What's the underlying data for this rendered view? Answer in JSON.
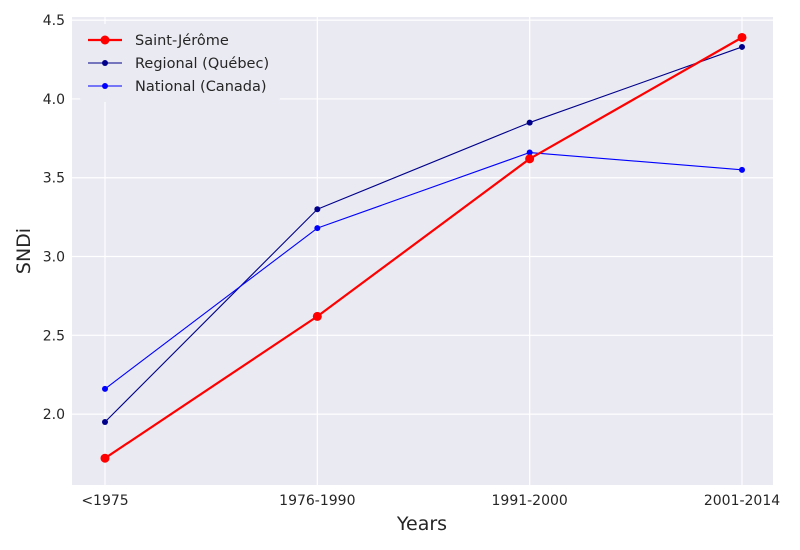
{
  "chart_data": {
    "type": "line",
    "categories": [
      "<1975",
      "1976-1990",
      "1991-2000",
      "2001-2014"
    ],
    "xlabel": "Years",
    "ylabel": "SNDi",
    "ylim": [
      1.55,
      4.52
    ],
    "yticks": [
      2.0,
      2.5,
      3.0,
      3.5,
      4.0,
      4.5
    ],
    "ytick_labels": [
      "2.0",
      "2.5",
      "3.0",
      "3.5",
      "4.0",
      "4.5"
    ],
    "grid": true,
    "legend_position": "top-left",
    "series": [
      {
        "name": "Saint-Jérôme",
        "values": [
          1.72,
          2.62,
          3.62,
          4.39
        ],
        "color": "#ff0000",
        "emphasis": true
      },
      {
        "name": "Regional (Québec)",
        "values": [
          1.95,
          3.3,
          3.85,
          4.33
        ],
        "color": "#00008b",
        "emphasis": false
      },
      {
        "name": "National (Canada)",
        "values": [
          2.16,
          3.18,
          3.66,
          3.55
        ],
        "color": "#0000ff",
        "emphasis": false
      }
    ]
  },
  "colors": {
    "plot_background": "#eaeaf2",
    "grid": "#ffffff",
    "text": "#262626"
  }
}
